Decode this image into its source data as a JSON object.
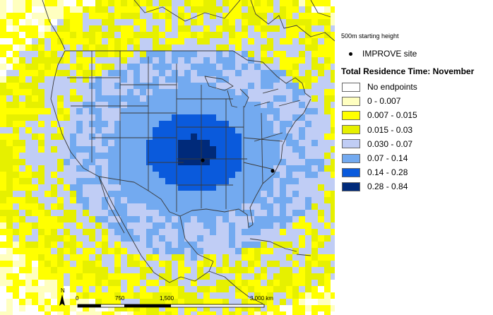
{
  "legend": {
    "starting_height": "500m starting height",
    "site_label": "IMPROVE site",
    "title": "Total Residence Time: November",
    "items": [
      {
        "label": "No endpoints",
        "color": "#ffffff"
      },
      {
        "label": "0 - 0.007",
        "color": "#ffffc0"
      },
      {
        "label": "0.007 - 0.015",
        "color": "#ffff00"
      },
      {
        "label": "0.015 - 0.03",
        "color": "#e6f000"
      },
      {
        "label": "0.030 - 0.07",
        "color": "#c0cdf5"
      },
      {
        "label": "0.07 - 0.14",
        "color": "#73aaf0"
      },
      {
        "label": "0.14 - 0.28",
        "color": "#0a5adc"
      },
      {
        "label": "0.28 - 0.84",
        "color": "#002a7a"
      }
    ]
  },
  "scale": {
    "north": "N",
    "ticks": [
      "0",
      "750",
      "1,500",
      "3,000 km"
    ]
  }
}
